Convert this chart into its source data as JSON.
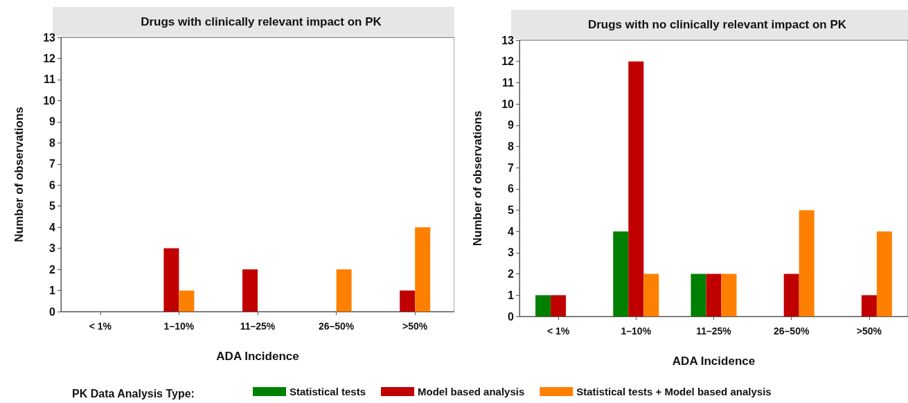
{
  "chart_data": [
    {
      "type": "bar",
      "title": "Drugs with clinically relevant impact on PK",
      "xlabel": "ADA Incidence",
      "ylabel": "Number of observations",
      "categories": [
        "< 1%",
        "1–10%",
        "11–25%",
        "26–50%",
        ">50%"
      ],
      "series": [
        {
          "color": "#c00000",
          "values": [
            0,
            3,
            2,
            0,
            1
          ]
        },
        {
          "color": "#ff8000",
          "values": [
            0,
            1,
            0,
            2,
            4
          ]
        }
      ],
      "ylim": [
        0,
        13
      ],
      "yticks": [
        0,
        1,
        2,
        3,
        4,
        5,
        6,
        7,
        8,
        9,
        10,
        11,
        12,
        13
      ],
      "grid": false,
      "legend": false
    },
    {
      "type": "bar",
      "title": "Drugs with no clinically relevant impact on PK",
      "xlabel": "ADA Incidence",
      "ylabel": "Number of observations",
      "legend_title": "PK Data Analysis Type:",
      "categories": [
        "< 1%",
        "1–10%",
        "11–25%",
        "26–50%",
        ">50%"
      ],
      "series": [
        {
          "name": "Statistical tests",
          "color": "#008000",
          "values": [
            1,
            4,
            2,
            0,
            0
          ]
        },
        {
          "name": "Model based analysis",
          "color": "#c00000",
          "values": [
            1,
            12,
            2,
            2,
            1
          ]
        },
        {
          "name": "Statistical tests + Model based analysis",
          "color": "#ff8000",
          "values": [
            0,
            2,
            2,
            5,
            4
          ]
        }
      ],
      "ylim": [
        0,
        13
      ],
      "yticks": [
        0,
        1,
        2,
        3,
        4,
        5,
        6,
        7,
        8,
        9,
        10,
        11,
        12,
        13
      ],
      "grid": false,
      "legend": "bottom"
    }
  ]
}
